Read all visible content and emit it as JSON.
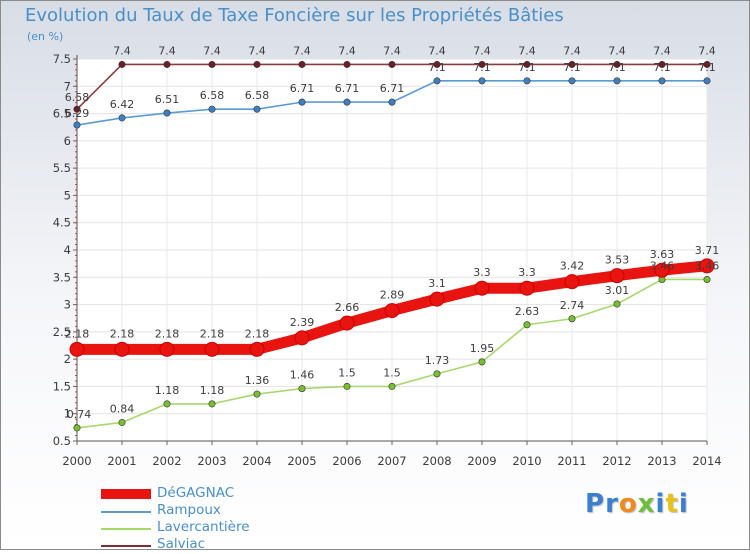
{
  "chart_data": {
    "type": "line",
    "title": "Evolution du Taux de Taxe Foncière sur les Propriétés Bâties",
    "ylabel": "(en %)",
    "xlabel": "",
    "ylim": [
      0.5,
      7.5
    ],
    "yticks": [
      "0.5",
      "1",
      "1.5",
      "2",
      "2.5",
      "3",
      "3.5",
      "4",
      "4.5",
      "5",
      "5.5",
      "6",
      "6.5",
      "7",
      "7.5"
    ],
    "x": [
      "2000",
      "2001",
      "2002",
      "2003",
      "2004",
      "2005",
      "2006",
      "2007",
      "2008",
      "2009",
      "2010",
      "2011",
      "2012",
      "2013",
      "2014"
    ],
    "series": [
      {
        "name": "DéGAGNAC",
        "color": "#e8140f",
        "values": [
          2.18,
          2.18,
          2.18,
          2.18,
          2.18,
          2.39,
          2.66,
          2.89,
          3.1,
          3.3,
          3.3,
          3.42,
          3.53,
          3.63,
          3.71
        ],
        "labels": [
          "2.18",
          "2.18",
          "2.18",
          "2.18",
          "2.18",
          "2.39",
          "2.66",
          "2.89",
          "3.1",
          "3.3",
          "3.3",
          "3.42",
          "3.53",
          "3.63",
          "3.71"
        ]
      },
      {
        "name": "Rampoux",
        "color": "#5b9bd5",
        "values": [
          6.29,
          6.42,
          6.51,
          6.58,
          6.58,
          6.71,
          6.71,
          6.71,
          7.1,
          7.1,
          7.1,
          7.1,
          7.1,
          7.1,
          7.1
        ],
        "labels": [
          "6.29",
          "6.42",
          "6.51",
          "6.58",
          "6.58",
          "6.71",
          "6.71",
          "6.71",
          "7.1",
          "7.1",
          "7.1",
          "7.1",
          "7.1",
          "7.1",
          "7.1"
        ]
      },
      {
        "name": "Lavercantière",
        "color": "#a6d86c",
        "values": [
          0.74,
          0.84,
          1.18,
          1.18,
          1.36,
          1.46,
          1.5,
          1.5,
          1.73,
          1.95,
          2.63,
          2.74,
          3.01,
          3.46,
          3.46
        ],
        "labels": [
          "0.74",
          "0.84",
          "1.18",
          "1.18",
          "1.36",
          "1.46",
          "1.5",
          "1.5",
          "1.73",
          "1.95",
          "2.63",
          "2.74",
          "3.01",
          "3.46",
          "3.46"
        ]
      },
      {
        "name": "Salviac",
        "color": "#7b2f35",
        "values": [
          6.58,
          7.4,
          7.4,
          7.4,
          7.4,
          7.4,
          7.4,
          7.4,
          7.4,
          7.4,
          7.4,
          7.4,
          7.4,
          7.4,
          7.4
        ],
        "labels": [
          "6.58",
          "7.4",
          "7.4",
          "7.4",
          "7.4",
          "7.4",
          "7.4",
          "7.4",
          "7.4",
          "7.4",
          "7.4",
          "7.4",
          "7.4",
          "7.4",
          "7.4"
        ]
      }
    ],
    "legend": [
      "DéGAGNAC",
      "Rampoux",
      "Lavercantière",
      "Salviac"
    ]
  },
  "brand": {
    "text": "Proxiti",
    "letters": [
      "P",
      "r",
      "o",
      "x",
      "i",
      "t",
      "i"
    ],
    "colors": [
      "#3a7fd0",
      "#3a7fd0",
      "#f08a1c",
      "#6cbf3a",
      "#3a7fd0",
      "#e8c21c",
      "#3a7fd0"
    ]
  }
}
